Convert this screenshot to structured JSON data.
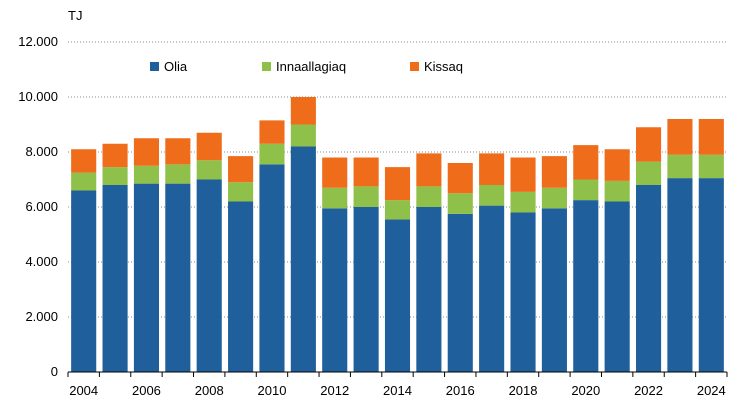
{
  "chart_data": {
    "type": "bar",
    "stacked": true,
    "title": "",
    "ylabel": "TJ",
    "xlabel": "",
    "ylim": [
      0,
      12000
    ],
    "yticks": [
      0,
      2000,
      4000,
      6000,
      8000,
      10000,
      12000
    ],
    "ytick_labels": [
      "0",
      "2.000",
      "4.000",
      "6.000",
      "8.000",
      "10.000",
      "12.000"
    ],
    "grid": true,
    "legend_position": "top",
    "categories": [
      "2004",
      "2005",
      "2006",
      "2007",
      "2008",
      "2009",
      "2010",
      "2011",
      "2012",
      "2013",
      "2014",
      "2015",
      "2016",
      "2017",
      "2018",
      "2019",
      "2020",
      "2021",
      "2022",
      "2023",
      "2024"
    ],
    "xtick_labels": [
      "2004",
      "",
      "2006",
      "",
      "2008",
      "",
      "2010",
      "",
      "2012",
      "",
      "2014",
      "",
      "2016",
      "",
      "2018",
      "",
      "2020",
      "",
      "2022",
      "",
      "2024"
    ],
    "series": [
      {
        "name": "Olia",
        "color": "#1f5f9b",
        "values": [
          6600,
          6800,
          6850,
          6850,
          7000,
          6200,
          7550,
          8200,
          5950,
          6000,
          5550,
          6000,
          5750,
          6050,
          5800,
          5950,
          6250,
          6200,
          6800,
          7050,
          7050
        ]
      },
      {
        "name": "Innaallagiaq",
        "color": "#8fc04a",
        "values": [
          650,
          650,
          650,
          700,
          700,
          700,
          750,
          800,
          750,
          750,
          700,
          750,
          750,
          750,
          750,
          750,
          750,
          750,
          850,
          850,
          850
        ]
      },
      {
        "name": "Kissaq",
        "color": "#ef6c1b",
        "values": [
          850,
          850,
          1000,
          950,
          1000,
          950,
          850,
          1000,
          1100,
          1050,
          1200,
          1200,
          1100,
          1150,
          1250,
          1150,
          1250,
          1150,
          1250,
          1300,
          1300
        ]
      }
    ]
  }
}
